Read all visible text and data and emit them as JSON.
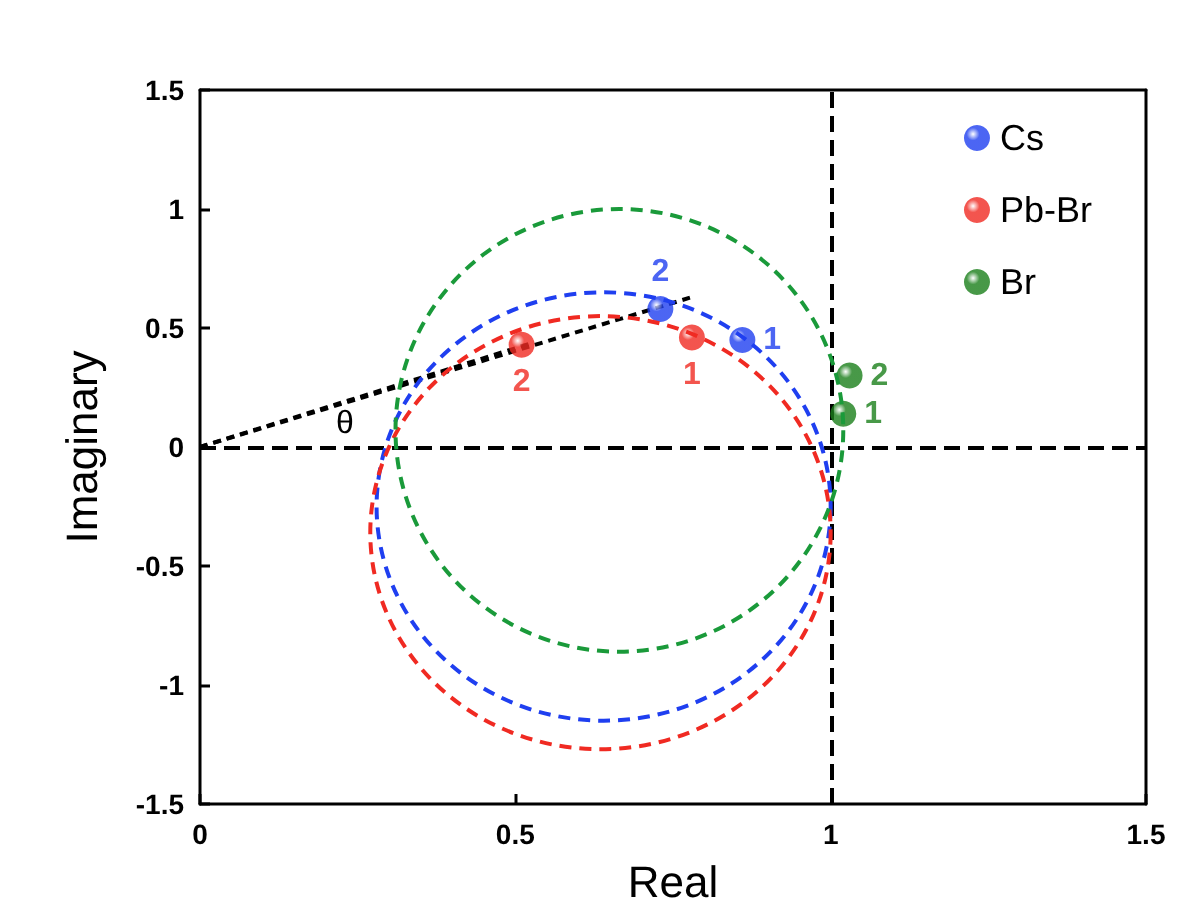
{
  "chart_data": {
    "type": "scatter",
    "xlabel": "Real",
    "ylabel": "Imaginary",
    "xlim": [
      0,
      1.5
    ],
    "xticks": [
      0,
      0.5,
      1,
      1.5
    ],
    "ylim": [
      -1.5,
      1.5
    ],
    "yticks": [
      -1.5,
      -1,
      -0.5,
      0,
      0.5,
      1,
      1.5
    ],
    "legend": "top right",
    "marker": "circle",
    "series": [
      {
        "name": "Cs",
        "color": "#1f3ff0",
        "x": [
          0.86,
          0.73
        ],
        "values": [
          0.45,
          0.58
        ]
      },
      {
        "name": "Pb-Br",
        "color": "#f02a22",
        "x": [
          0.78,
          0.51
        ],
        "values": [
          0.46,
          0.43
        ]
      },
      {
        "name": "Br",
        "color": "#1a7f1a",
        "x": [
          1.02,
          1.03
        ],
        "values": [
          0.14,
          0.3
        ]
      },
      {
        "type": "line",
        "color": "#000000",
        "line_style": "dashed",
        "marker": "none",
        "x": [
          0,
          0.78
        ],
        "values": [
          0,
          0.63
        ]
      },
      {
        "type": "line",
        "color": "#000000",
        "line_style": "dashed",
        "marker": "none",
        "x": [
          0,
          0.53
        ],
        "values": [
          0,
          0.44
        ]
      }
    ],
    "ref_lines": [
      {
        "axis": "x",
        "value": 1,
        "color": "#000000",
        "line_style": "dashed"
      },
      {
        "axis": "y",
        "value": 0,
        "color": "#000000",
        "line_style": "dashed"
      }
    ],
    "annotations": [
      {
        "text": "1",
        "x": 0.86,
        "y": 0.45
      },
      {
        "text": "2",
        "x": 0.73,
        "y": 0.58
      },
      {
        "text": "1",
        "x": 0.78,
        "y": 0.46
      },
      {
        "text": "2",
        "x": 0.51,
        "y": 0.43
      },
      {
        "text": "1",
        "x": 1.02,
        "y": 0.14
      },
      {
        "text": "2",
        "x": 1.03,
        "y": 0.3
      },
      "θ"
    ]
  }
}
